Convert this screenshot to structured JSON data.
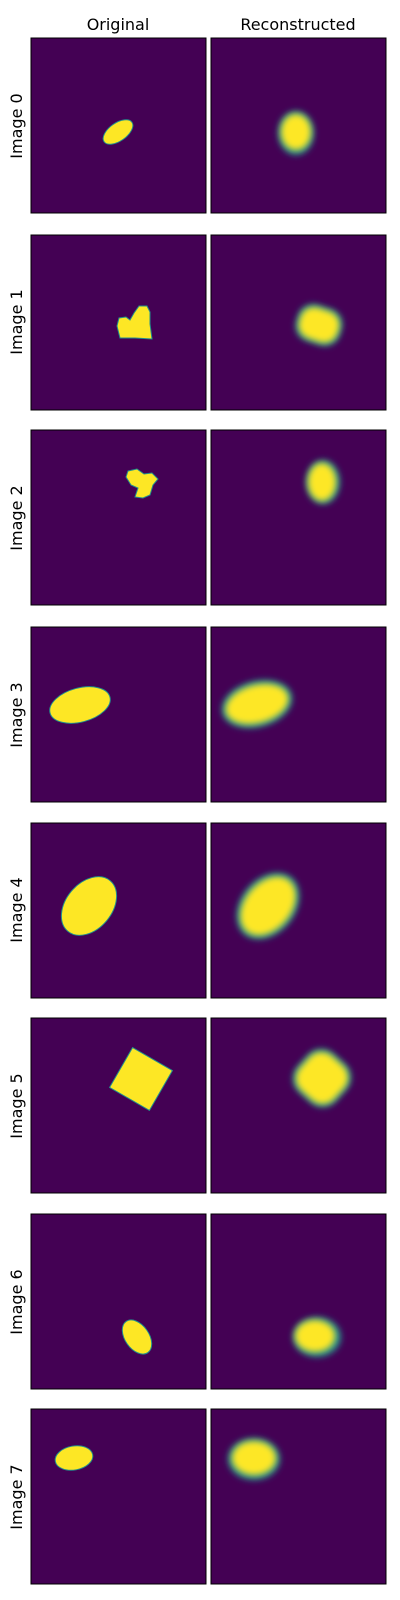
{
  "figure": {
    "column_titles": [
      "Original",
      "Reconstructed"
    ],
    "row_labels": [
      "Image 0",
      "Image 1",
      "Image 2",
      "Image 3",
      "Image 4",
      "Image 5",
      "Image 6",
      "Image 7"
    ]
  },
  "colors": {
    "background": "#440154",
    "shape": "#fde725",
    "edge": "#21918c",
    "frame": "#000000"
  }
}
